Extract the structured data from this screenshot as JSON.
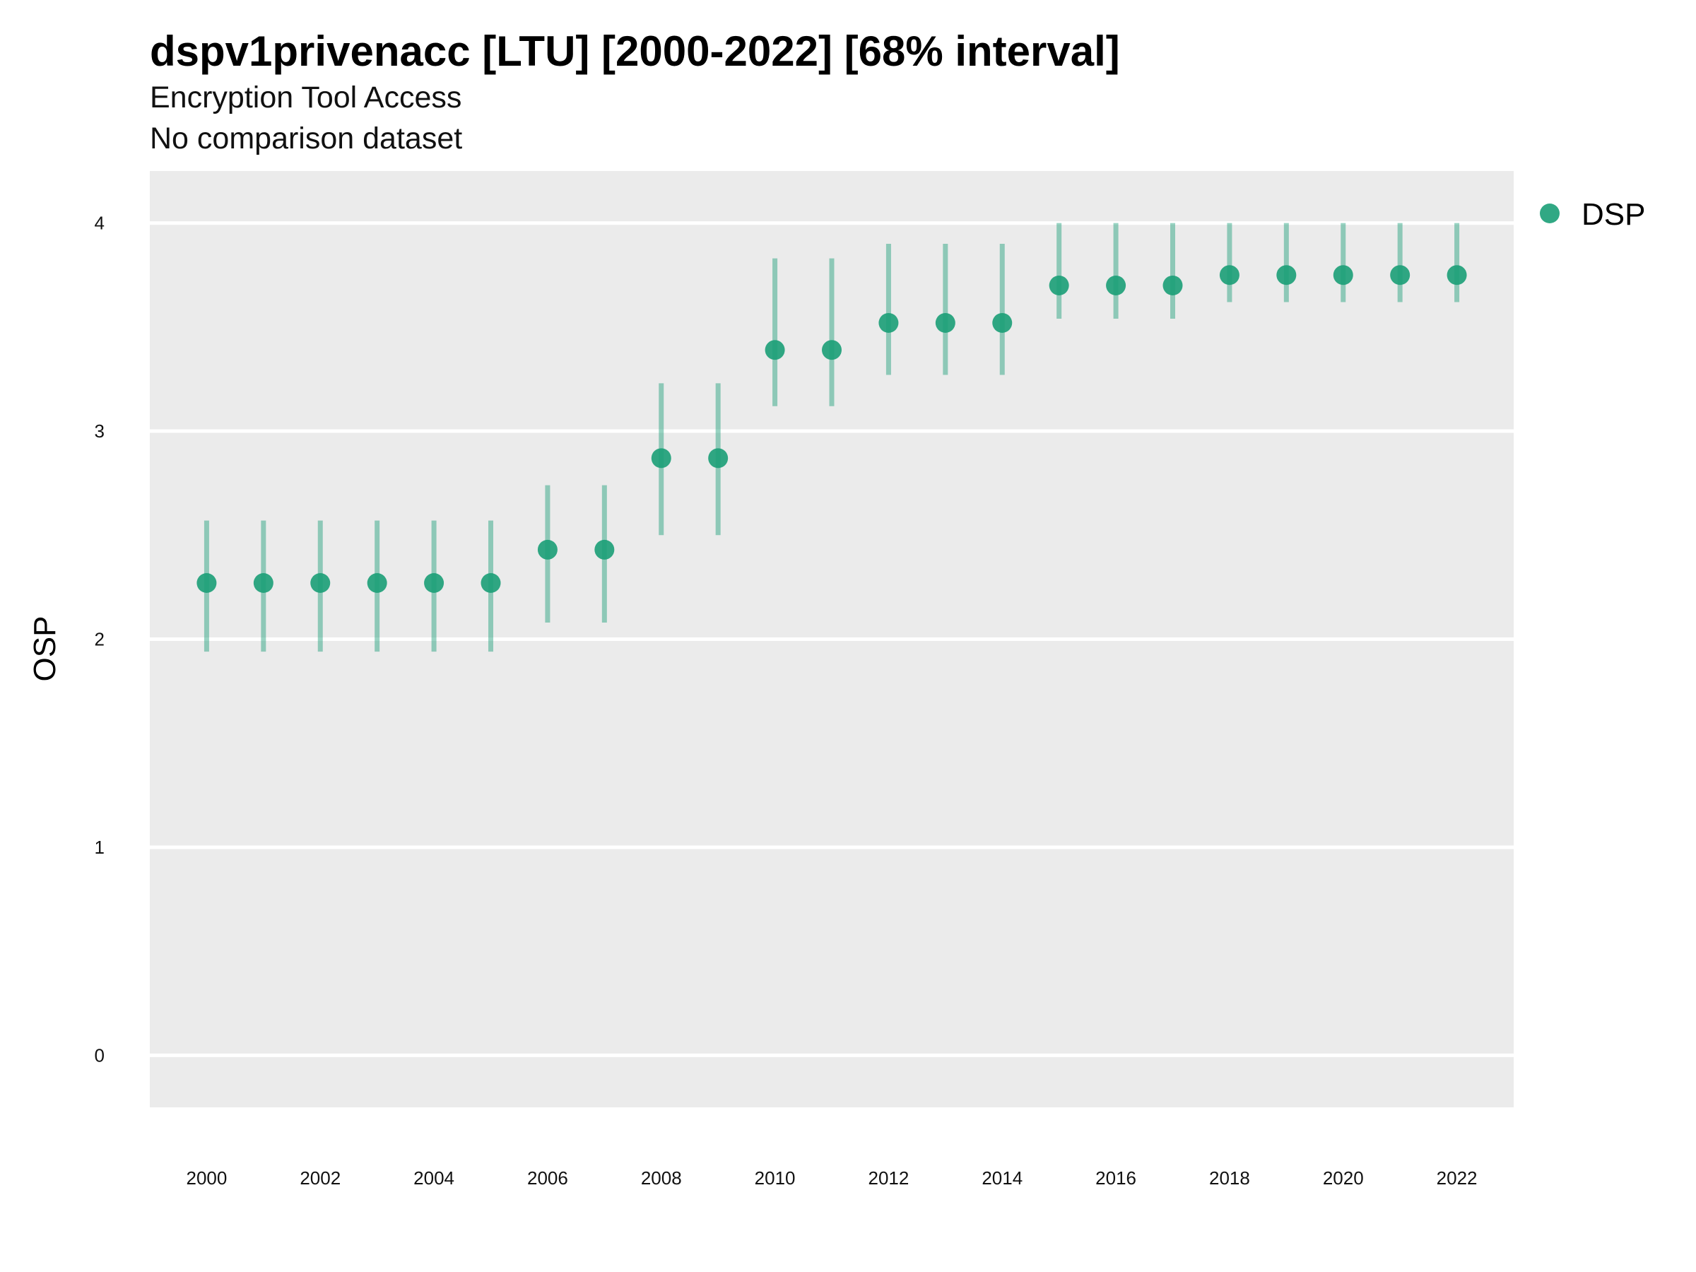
{
  "chart_data": {
    "type": "scatter",
    "title": "dspv1privenacc [LTU] [2000-2022] [68% interval]",
    "subtitle": "Encryption Tool Access",
    "subtitle2": "No comparison dataset",
    "xlabel": "",
    "ylabel": "OSP",
    "xlim": [
      1999,
      2023
    ],
    "ylim": [
      -0.25,
      4.25
    ],
    "x_ticks": [
      "2000",
      "2002",
      "2004",
      "2006",
      "2008",
      "2010",
      "2012",
      "2014",
      "2016",
      "2018",
      "2020",
      "2022"
    ],
    "y_ticks": [
      "0",
      "1",
      "2",
      "3",
      "4"
    ],
    "grid": true,
    "legend_position": "right",
    "series": [
      {
        "name": "DSP",
        "color": "#1b9e77",
        "x": [
          2000,
          2001,
          2002,
          2003,
          2004,
          2005,
          2006,
          2007,
          2008,
          2009,
          2010,
          2011,
          2012,
          2013,
          2014,
          2015,
          2016,
          2017,
          2018,
          2019,
          2020,
          2021,
          2022
        ],
        "y": [
          2.27,
          2.27,
          2.27,
          2.27,
          2.27,
          2.27,
          2.43,
          2.43,
          2.87,
          2.87,
          3.39,
          3.39,
          3.52,
          3.52,
          3.52,
          3.7,
          3.7,
          3.7,
          3.75,
          3.75,
          3.75,
          3.75,
          3.75
        ],
        "lower": [
          1.94,
          1.94,
          1.94,
          1.94,
          1.94,
          1.94,
          2.08,
          2.08,
          2.5,
          2.5,
          3.12,
          3.12,
          3.27,
          3.27,
          3.27,
          3.54,
          3.54,
          3.54,
          3.62,
          3.62,
          3.62,
          3.62,
          3.62
        ],
        "upper": [
          2.57,
          2.57,
          2.57,
          2.57,
          2.57,
          2.57,
          2.74,
          2.74,
          3.23,
          3.23,
          3.83,
          3.83,
          3.9,
          3.9,
          3.9,
          4.0,
          4.0,
          4.0,
          4.0,
          4.0,
          4.0,
          4.0,
          4.0
        ]
      }
    ]
  }
}
